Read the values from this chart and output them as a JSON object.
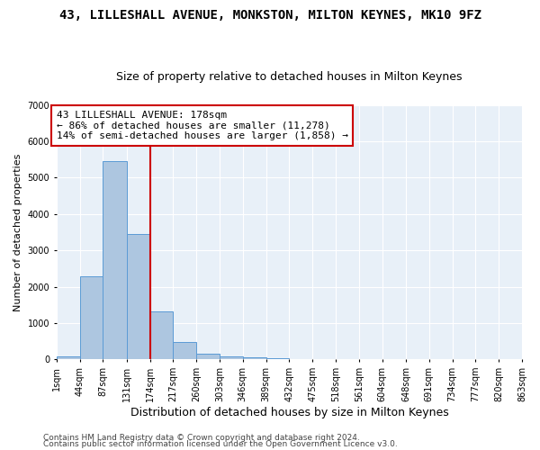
{
  "title": "43, LILLESHALL AVENUE, MONKSTON, MILTON KEYNES, MK10 9FZ",
  "subtitle": "Size of property relative to detached houses in Milton Keynes",
  "xlabel": "Distribution of detached houses by size in Milton Keynes",
  "ylabel": "Number of detached properties",
  "footer1": "Contains HM Land Registry data © Crown copyright and database right 2024.",
  "footer2": "Contains public sector information licensed under the Open Government Licence v3.0.",
  "bar_edges": [
    1,
    44,
    87,
    131,
    174,
    217,
    260,
    303,
    346,
    389,
    432,
    475,
    518,
    561,
    604,
    648,
    691,
    734,
    777,
    820,
    863
  ],
  "bar_heights": [
    80,
    2280,
    5450,
    3450,
    1320,
    470,
    160,
    90,
    60,
    30,
    10,
    5,
    3,
    2,
    1,
    1,
    0,
    0,
    0,
    0
  ],
  "bar_color": "#adc6e0",
  "bar_edgecolor": "#5b9bd5",
  "property_line_x": 174,
  "property_line_color": "#cc0000",
  "annotation_text": "43 LILLESHALL AVENUE: 178sqm\n← 86% of detached houses are smaller (11,278)\n14% of semi-detached houses are larger (1,858) →",
  "annotation_box_color": "#cc0000",
  "annotation_text_color": "black",
  "ylim": [
    0,
    7000
  ],
  "yticks": [
    0,
    1000,
    2000,
    3000,
    4000,
    5000,
    6000,
    7000
  ],
  "background_color": "#e8f0f8",
  "grid_color": "#ffffff",
  "title_fontsize": 10,
  "subtitle_fontsize": 9,
  "xlabel_fontsize": 9,
  "ylabel_fontsize": 8,
  "tick_fontsize": 7,
  "annotation_fontsize": 8,
  "footer_fontsize": 6.5
}
